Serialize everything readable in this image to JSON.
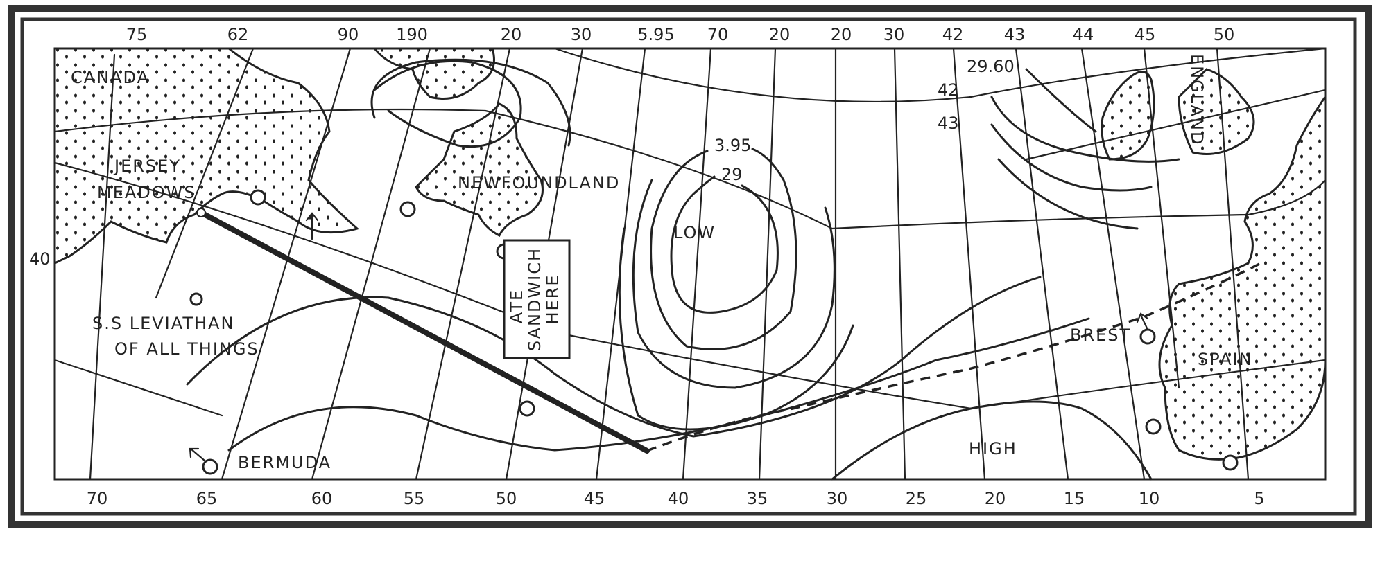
{
  "map": {
    "top_scale": [
      "75",
      "62",
      "90",
      "190",
      "20",
      "30",
      "5.95",
      "70",
      "20",
      "20",
      "30",
      "42",
      "43",
      "44",
      "45",
      "50"
    ],
    "bottom_scale": [
      "70",
      "65",
      "60",
      "55",
      "50",
      "45",
      "40",
      "35",
      "30",
      "25",
      "20",
      "15",
      "10",
      "5"
    ],
    "left_scale": [
      "40"
    ],
    "places": {
      "canada": "CANADA",
      "jersey": "JERSEY",
      "meadows": "MEADOWS",
      "newfoundland": "NEWFOUNDLAND",
      "leviathan": "S.S LEVIATHAN",
      "all_things": "OF ALL THINGS",
      "bermuda": "BERMUDA",
      "brest": "BREST",
      "spain": "SPAIN",
      "england": "ENGLAND"
    },
    "pressure": {
      "low": "LOW",
      "high": "HIGH",
      "iso_395": "3.95",
      "iso_29": "29",
      "iso_2960": "29.60",
      "iso_42": "42",
      "iso_43": "43"
    },
    "note": [
      "ATE",
      "SANDWICH",
      "HERE"
    ],
    "colors": {
      "ink": "#222222",
      "paper": "#ffffff"
    }
  }
}
